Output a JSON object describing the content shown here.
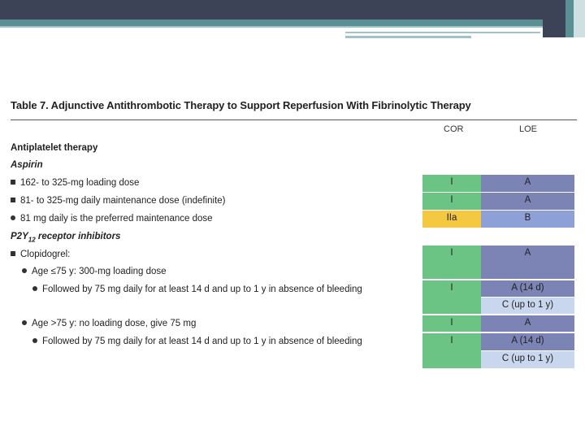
{
  "table": {
    "title": "Table 7.   Adjunctive Antithrombotic Therapy to Support Reperfusion With Fibrinolytic Therapy",
    "col_cor": "COR",
    "col_loe": "LOE",
    "section_antiplatelet": "Antiplatelet therapy",
    "sub_aspirin": "Aspirin",
    "aspirin_rows": [
      {
        "text": "162- to 325-mg loading dose",
        "cor": "I",
        "loe": "A"
      },
      {
        "text": "81- to 325-mg daily maintenance dose (indefinite)",
        "cor": "I",
        "loe": "A"
      },
      {
        "text": "81 mg daily is the preferred maintenance dose",
        "cor": "IIa",
        "loe": "B"
      }
    ],
    "sub_p2y12": "P2Y12 receptor inhibitors",
    "clopidogrel": {
      "text": "Clopidogrel:",
      "cor": "I",
      "loe": "A"
    },
    "age_le75": {
      "text": "Age ≤75 y: 300-mg loading dose"
    },
    "followed_1": {
      "text": "Followed by 75 mg daily for at least 14 d and up to 1 y in absence of bleeding",
      "cor": "I",
      "loe_a": "A (14 d)",
      "loe_c": "C (up to 1 y)"
    },
    "age_gt75": {
      "text": "Age >75 y: no loading dose, give 75 mg",
      "cor": "I",
      "loe": "A"
    },
    "followed_2": {
      "text": "Followed by 75 mg daily for at least 14 d and up to 1 y in absence of bleeding",
      "cor": "I",
      "loe_a": "A (14 d)",
      "loe_c": "C (up to 1 y)"
    }
  },
  "colors": {
    "cor_class_I": "#6cc484",
    "cor_class_IIa": "#f5c842",
    "loe_A": "#7b84b5",
    "loe_B": "#8fa0d6",
    "loe_C": "#c9d7ee"
  }
}
